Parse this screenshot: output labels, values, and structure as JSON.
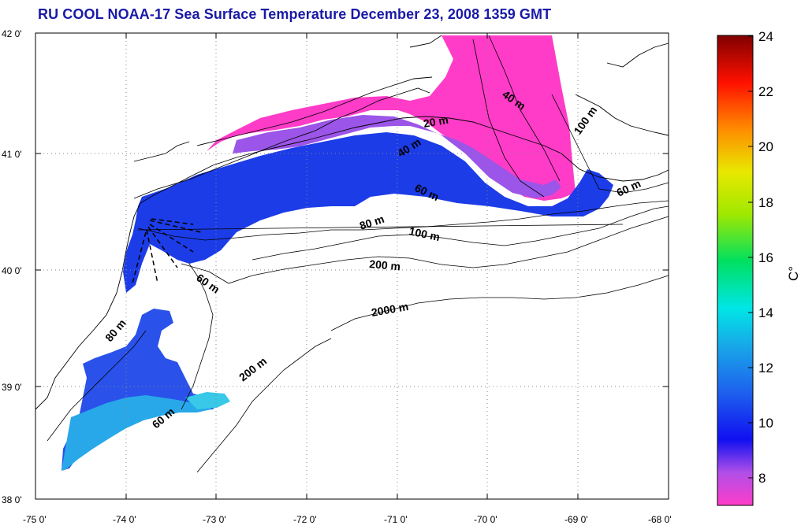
{
  "title": "RU COOL  NOAA-17 Sea Surface Temperature December 23, 2008 1359 GMT",
  "lat_ticks": [
    "38 0'",
    "39 0'",
    "40 0'",
    "41 0'",
    "42 0'"
  ],
  "lon_ticks": [
    "-75 0'",
    "-74 0'",
    "-73 0'",
    "-72 0'",
    "-71 0'",
    "-70 0'",
    "-69 0'",
    "-68 0'"
  ],
  "colorbar": {
    "unit_label": "C°",
    "ticks": [
      "8",
      "10",
      "12",
      "14",
      "16",
      "18",
      "20",
      "22",
      "24"
    ],
    "range": [
      7,
      24
    ],
    "colors": [
      "#ff3cc8",
      "#b04fe8",
      "#2020f0",
      "#1e78e8",
      "#00e6e6",
      "#00e060",
      "#e8e800",
      "#ff8c00",
      "#ff1000",
      "#800000"
    ]
  },
  "contour_labels": [
    "40 m",
    "20 m",
    "40 m",
    "100 m",
    "60 m",
    "60 m",
    "80 m",
    "100 m",
    "200 m",
    "60 m",
    "2000 m",
    "80 m",
    "200 m",
    "60 m"
  ]
}
